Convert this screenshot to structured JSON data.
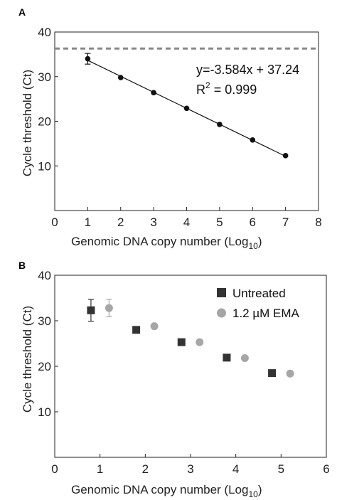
{
  "chart_data": [
    {
      "panel": "A",
      "type": "scatter",
      "xlabel": "Genomic DNA copy number (Log",
      "xlabel_sub": "10",
      "xlabel_end": ")",
      "ylabel": "Cycle threshold (Ct)",
      "xlim": [
        0,
        8
      ],
      "ylim": [
        0,
        40
      ],
      "xticks": [
        0,
        1,
        2,
        3,
        4,
        5,
        6,
        7,
        8
      ],
      "yticks": [
        10,
        20,
        30,
        40
      ],
      "grid": false,
      "points": {
        "x": [
          1,
          2,
          3,
          4,
          5,
          6,
          7
        ],
        "y": [
          34.0,
          29.8,
          26.4,
          22.9,
          19.3,
          15.8,
          12.3
        ],
        "err": [
          1.2,
          0,
          0,
          0,
          0,
          0,
          0
        ],
        "color": "#111111"
      },
      "fit_line": {
        "slope": -3.584,
        "intercept": 37.24,
        "x_range": [
          1,
          7
        ]
      },
      "threshold_line": {
        "y": 36.3,
        "color": "#888888",
        "style": "dashed"
      },
      "annotations": {
        "equation": "y=-3.584x + 37.24",
        "r2_prefix": "R",
        "r2_sup": "2",
        "r2_value": " = 0.999"
      }
    },
    {
      "panel": "B",
      "type": "scatter",
      "xlabel": "Genomic DNA copy number (Log",
      "xlabel_sub": "10",
      "xlabel_end": ")",
      "ylabel": "Cycle threshold (Ct)",
      "xlim": [
        0,
        6
      ],
      "ylim": [
        0,
        40
      ],
      "xticks": [
        0,
        1,
        2,
        3,
        4,
        5,
        6
      ],
      "yticks": [
        10,
        20,
        30,
        40
      ],
      "grid": false,
      "legend_position": "top-right",
      "series": [
        {
          "name": "Untreated",
          "marker": "square",
          "color": "#333333",
          "x": [
            0.8,
            1.8,
            2.8,
            3.8,
            4.8
          ],
          "y": [
            32.3,
            28.0,
            25.3,
            21.9,
            18.5
          ],
          "err": [
            2.4,
            0,
            0,
            0,
            0
          ]
        },
        {
          "name": "1.2 µM EMA",
          "marker": "circle",
          "color": "#a6a6a6",
          "x": [
            1.2,
            2.2,
            3.2,
            4.2,
            5.2
          ],
          "y": [
            32.8,
            28.8,
            25.3,
            21.8,
            18.4
          ],
          "err": [
            1.9,
            0,
            0,
            0,
            0
          ]
        }
      ]
    }
  ]
}
